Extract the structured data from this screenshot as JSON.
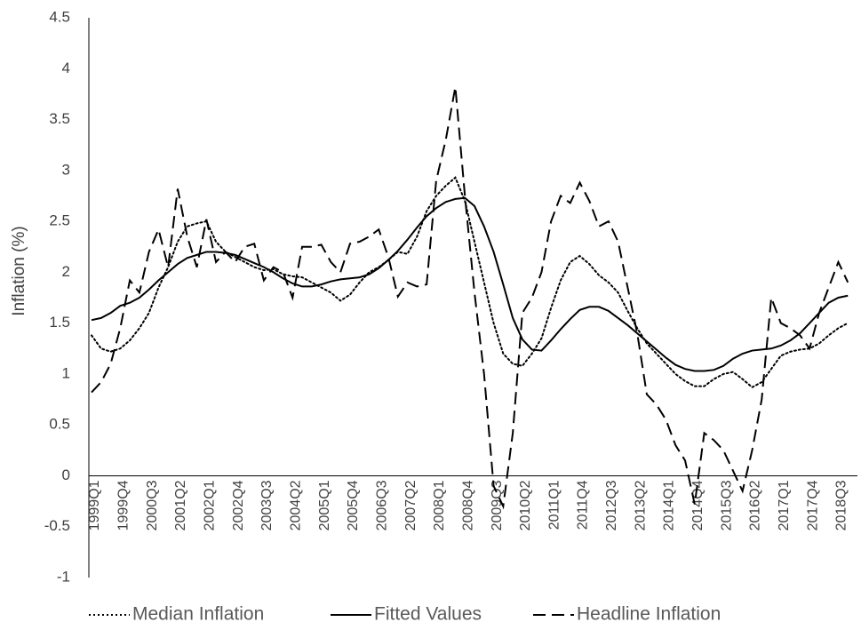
{
  "chart_data": {
    "type": "line",
    "y_label": "Inflation (%)",
    "categories": [
      "1999Q1",
      null,
      null,
      "1999Q4",
      null,
      null,
      "2000Q3",
      null,
      null,
      "2001Q2",
      null,
      null,
      "2002Q1",
      null,
      null,
      "2002Q4",
      null,
      null,
      "2003Q3",
      null,
      null,
      "2004Q2",
      null,
      null,
      "2005Q1",
      null,
      null,
      "2005Q4",
      null,
      null,
      "2006Q3",
      null,
      null,
      "2007Q2",
      null,
      null,
      "2008Q1",
      null,
      null,
      "2008Q4",
      null,
      null,
      "2009Q3",
      null,
      null,
      "2010Q2",
      null,
      null,
      "2011Q1",
      null,
      null,
      "2011Q4",
      null,
      null,
      "2012Q3",
      null,
      null,
      "2013Q2",
      null,
      null,
      "2014Q1",
      null,
      null,
      "2014Q4",
      null,
      null,
      "2015Q3",
      null,
      null,
      "2016Q2",
      null,
      null,
      "2017Q1",
      null,
      null,
      "2017Q4",
      null,
      null,
      "2018Q3",
      null
    ],
    "series": [
      {
        "name": "Median Inflation",
        "color": "#000000",
        "style": "dotted",
        "values": [
          1.38,
          1.25,
          1.22,
          1.25,
          1.33,
          1.45,
          1.6,
          1.85,
          2.05,
          2.3,
          2.45,
          2.48,
          2.5,
          2.3,
          2.2,
          2.15,
          2.1,
          2.05,
          2.02,
          2.03,
          1.98,
          1.96,
          1.95,
          1.9,
          1.85,
          1.8,
          1.72,
          1.78,
          1.9,
          2.0,
          2.05,
          2.12,
          2.2,
          2.18,
          2.35,
          2.6,
          2.75,
          2.85,
          2.93,
          2.7,
          2.3,
          1.9,
          1.5,
          1.2,
          1.1,
          1.08,
          1.2,
          1.35,
          1.65,
          1.92,
          2.1,
          2.16,
          2.08,
          1.97,
          1.9,
          1.8,
          1.62,
          1.45,
          1.3,
          1.2,
          1.1,
          1.0,
          0.93,
          0.88,
          0.88,
          0.95,
          1.0,
          1.02,
          0.95,
          0.87,
          0.92,
          1.05,
          1.18,
          1.22,
          1.24,
          1.25,
          1.3,
          1.38,
          1.45,
          1.5
        ]
      },
      {
        "name": "Fitted Values",
        "color": "#000000",
        "style": "solid",
        "values": [
          1.53,
          1.55,
          1.6,
          1.67,
          1.7,
          1.75,
          1.83,
          1.92,
          2.0,
          2.08,
          2.14,
          2.17,
          2.2,
          2.2,
          2.19,
          2.17,
          2.13,
          2.09,
          2.05,
          2.0,
          1.94,
          1.89,
          1.86,
          1.86,
          1.88,
          1.91,
          1.93,
          1.94,
          1.95,
          1.98,
          2.04,
          2.12,
          2.21,
          2.32,
          2.44,
          2.55,
          2.63,
          2.69,
          2.72,
          2.73,
          2.65,
          2.45,
          2.2,
          1.88,
          1.55,
          1.34,
          1.24,
          1.23,
          1.33,
          1.44,
          1.54,
          1.63,
          1.66,
          1.66,
          1.62,
          1.55,
          1.48,
          1.4,
          1.32,
          1.24,
          1.16,
          1.09,
          1.05,
          1.03,
          1.03,
          1.04,
          1.08,
          1.15,
          1.2,
          1.23,
          1.24,
          1.25,
          1.28,
          1.33,
          1.4,
          1.5,
          1.6,
          1.7,
          1.75,
          1.77
        ]
      },
      {
        "name": "Headline Inflation",
        "color": "#000000",
        "style": "dashed",
        "values": [
          0.82,
          0.92,
          1.1,
          1.45,
          1.92,
          1.8,
          2.2,
          2.42,
          2.05,
          2.82,
          2.35,
          2.05,
          2.52,
          2.1,
          2.2,
          2.1,
          2.25,
          2.28,
          1.92,
          2.05,
          2.0,
          1.75,
          2.25,
          2.25,
          2.27,
          2.1,
          2.0,
          2.28,
          2.3,
          2.35,
          2.42,
          2.15,
          1.76,
          1.9,
          1.86,
          1.88,
          2.9,
          3.3,
          3.82,
          2.75,
          1.8,
          1.0,
          -0.1,
          -0.3,
          0.42,
          1.6,
          1.75,
          2.0,
          2.5,
          2.75,
          2.68,
          2.88,
          2.7,
          2.45,
          2.5,
          2.3,
          1.85,
          1.4,
          0.8,
          0.7,
          0.55,
          0.3,
          0.15,
          -0.28,
          0.42,
          0.35,
          0.25,
          0.05,
          -0.15,
          0.25,
          0.75,
          1.75,
          1.5,
          1.45,
          1.38,
          1.25,
          1.6,
          1.85,
          2.1,
          1.9
        ]
      }
    ],
    "ylim": [
      -1,
      4.5
    ],
    "yticks": [
      -1,
      -0.5,
      0,
      0.5,
      1,
      1.5,
      2,
      2.5,
      3,
      3.5,
      4,
      4.5
    ],
    "grid": false,
    "legend": "bottom"
  }
}
